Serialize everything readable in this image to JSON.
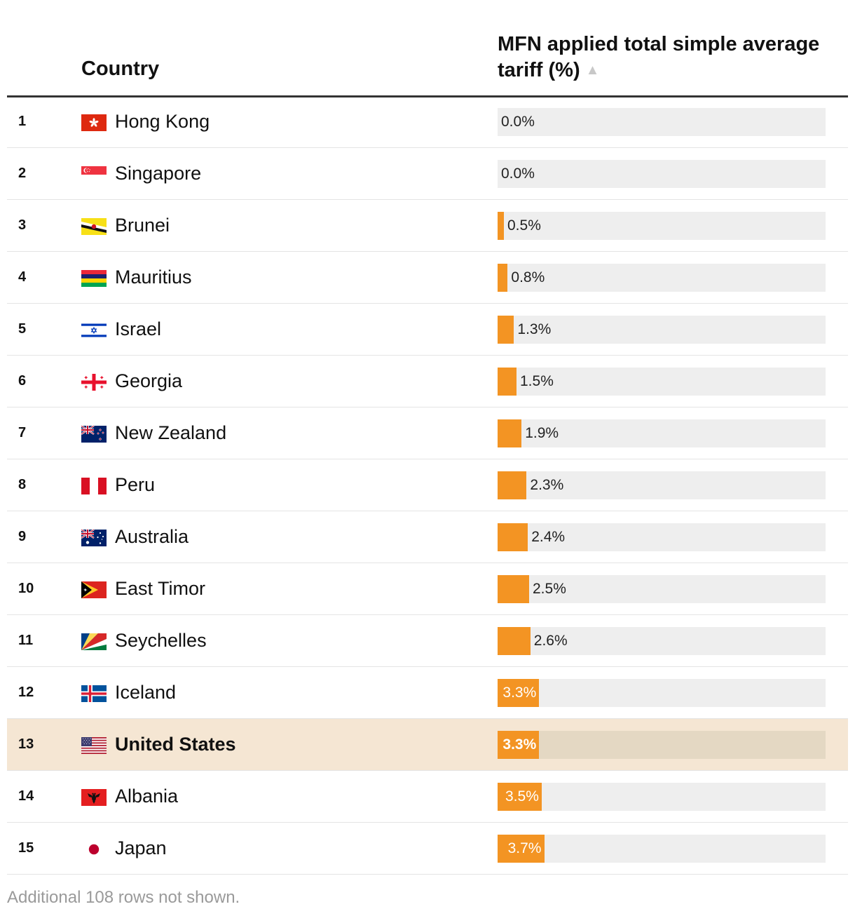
{
  "chart_data": {
    "type": "table",
    "columns": {
      "country": "Country",
      "value": "MFN applied total simple average tariff (%)"
    },
    "unit": "%",
    "xlim": [
      0,
      26
    ],
    "rows": [
      {
        "rank": "1",
        "country": "Hong Kong",
        "flag": "hong-kong",
        "value": 0.0,
        "label": "0.0%"
      },
      {
        "rank": "2",
        "country": "Singapore",
        "flag": "singapore",
        "value": 0.0,
        "label": "0.0%"
      },
      {
        "rank": "3",
        "country": "Brunei",
        "flag": "brunei",
        "value": 0.5,
        "label": "0.5%"
      },
      {
        "rank": "4",
        "country": "Mauritius",
        "flag": "mauritius",
        "value": 0.8,
        "label": "0.8%"
      },
      {
        "rank": "5",
        "country": "Israel",
        "flag": "israel",
        "value": 1.3,
        "label": "1.3%"
      },
      {
        "rank": "6",
        "country": "Georgia",
        "flag": "georgia",
        "value": 1.5,
        "label": "1.5%"
      },
      {
        "rank": "7",
        "country": "New Zealand",
        "flag": "new-zealand",
        "value": 1.9,
        "label": "1.9%"
      },
      {
        "rank": "8",
        "country": "Peru",
        "flag": "peru",
        "value": 2.3,
        "label": "2.3%"
      },
      {
        "rank": "9",
        "country": "Australia",
        "flag": "australia",
        "value": 2.4,
        "label": "2.4%"
      },
      {
        "rank": "10",
        "country": "East Timor",
        "flag": "east-timor",
        "value": 2.5,
        "label": "2.5%"
      },
      {
        "rank": "11",
        "country": "Seychelles",
        "flag": "seychelles",
        "value": 2.6,
        "label": "2.6%"
      },
      {
        "rank": "12",
        "country": "Iceland",
        "flag": "iceland",
        "value": 3.3,
        "label": "3.3%"
      },
      {
        "rank": "13",
        "country": "United States",
        "flag": "united-states",
        "value": 3.3,
        "label": "3.3%",
        "highlight": true
      },
      {
        "rank": "14",
        "country": "Albania",
        "flag": "albania",
        "value": 3.5,
        "label": "3.5%"
      },
      {
        "rank": "15",
        "country": "Japan",
        "flag": "japan",
        "value": 3.7,
        "label": "3.7%"
      }
    ],
    "sort": {
      "column": "value",
      "direction": "ascending"
    },
    "colors": {
      "bar": "#f39423",
      "track": "#eeeeee",
      "highlight_row": "#f5e6d3"
    }
  },
  "footnote": "Additional 108 rows not shown."
}
